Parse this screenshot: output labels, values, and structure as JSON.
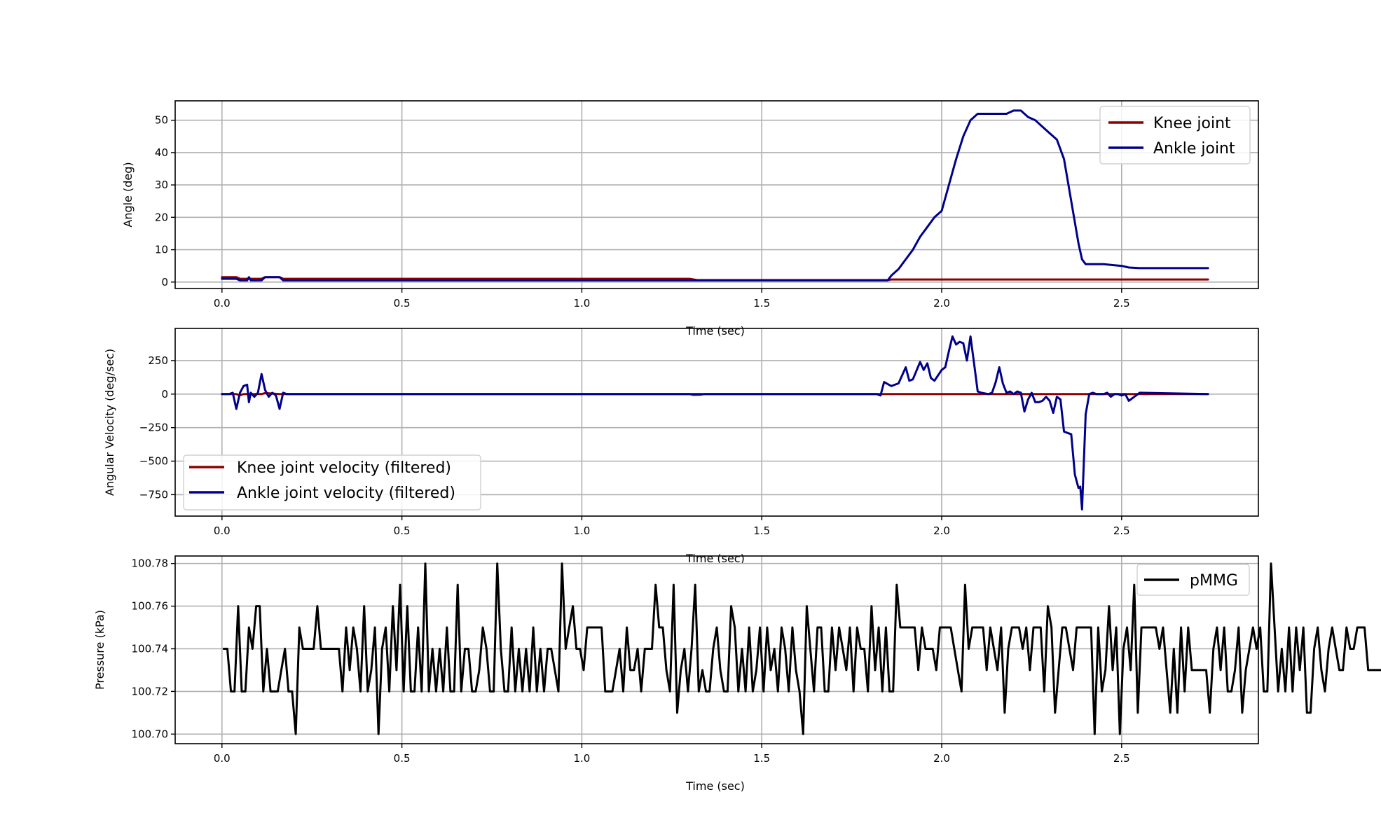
{
  "chart_data": [
    {
      "type": "line",
      "title": "",
      "xlabel": "Time (sec)",
      "ylabel": "Angle (deg)",
      "xlim": [
        -0.13,
        2.88
      ],
      "ylim": [
        -2,
        56
      ],
      "xticks": [
        0.0,
        0.5,
        1.0,
        1.5,
        2.0,
        2.5
      ],
      "xtick_labels": [
        "0.0",
        "0.5",
        "1.0",
        "1.5",
        "2.0",
        "2.5"
      ],
      "yticks": [
        0,
        10,
        20,
        30,
        40,
        50
      ],
      "ytick_labels": [
        "0",
        "10",
        "20",
        "30",
        "40",
        "50"
      ],
      "grid": true,
      "legend_position": "upper right",
      "series": [
        {
          "name": "Knee joint",
          "color": "#8b0000",
          "x": [
            0.0,
            0.04,
            0.05,
            0.11,
            0.12,
            0.16,
            0.17,
            1.3,
            1.32,
            1.85,
            1.86,
            2.74
          ],
          "y": [
            1.5,
            1.5,
            1.0,
            1.0,
            1.5,
            1.5,
            1.0,
            1.0,
            0.6,
            0.6,
            0.8,
            0.8
          ]
        },
        {
          "name": "Ankle joint",
          "color": "#00008b",
          "x": [
            0.0,
            0.04,
            0.05,
            0.07,
            0.075,
            0.08,
            0.09,
            0.11,
            0.12,
            0.16,
            0.17,
            1.85,
            1.86,
            1.88,
            1.9,
            1.92,
            1.94,
            1.96,
            1.98,
            2.0,
            2.02,
            2.04,
            2.06,
            2.08,
            2.1,
            2.12,
            2.15,
            2.18,
            2.2,
            2.22,
            2.24,
            2.26,
            2.28,
            2.3,
            2.32,
            2.34,
            2.36,
            2.38,
            2.39,
            2.4,
            2.45,
            2.5,
            2.52,
            2.55,
            2.74
          ],
          "y": [
            1.0,
            1.0,
            0.5,
            0.5,
            1.5,
            0.5,
            0.5,
            0.5,
            1.5,
            1.5,
            0.5,
            0.5,
            2.0,
            4.0,
            7.0,
            10.0,
            14.0,
            17.0,
            20.0,
            22.0,
            30.0,
            38.0,
            45.0,
            50.0,
            52.0,
            52.0,
            52.0,
            52.0,
            53.0,
            53.0,
            51.0,
            50.0,
            48.0,
            46.0,
            44.0,
            38.0,
            25.0,
            12.0,
            7.0,
            5.5,
            5.5,
            5.0,
            4.5,
            4.3,
            4.3
          ]
        }
      ]
    },
    {
      "type": "line",
      "title": "",
      "xlabel": "Time (sec)",
      "ylabel": "Angular Velocity (deg/sec)",
      "xlim": [
        -0.13,
        2.88
      ],
      "ylim": [
        -910,
        490
      ],
      "xticks": [
        0.0,
        0.5,
        1.0,
        1.5,
        2.0,
        2.5
      ],
      "xtick_labels": [
        "0.0",
        "0.5",
        "1.0",
        "1.5",
        "2.0",
        "2.5"
      ],
      "yticks": [
        250,
        0,
        -250,
        -500,
        -750
      ],
      "ytick_labels": [
        "250",
        "0",
        "−250",
        "−500",
        "−750"
      ],
      "grid": true,
      "legend_position": "lower left",
      "series": [
        {
          "name": "Knee joint velocity (filtered)",
          "color": "#8b0000",
          "x": [
            0.0,
            0.04,
            0.05,
            0.06,
            0.11,
            0.12,
            0.16,
            0.17,
            1.3,
            1.31,
            1.33,
            1.34,
            2.74
          ],
          "y": [
            0,
            0,
            -8,
            0,
            0,
            8,
            0,
            0,
            0,
            -6,
            -4,
            0,
            0
          ]
        },
        {
          "name": "Ankle joint velocity (filtered)",
          "color": "#00008b",
          "x": [
            0.0,
            0.02,
            0.03,
            0.04,
            0.05,
            0.06,
            0.07,
            0.075,
            0.08,
            0.09,
            0.1,
            0.11,
            0.12,
            0.13,
            0.14,
            0.15,
            0.16,
            0.17,
            0.18,
            1.82,
            1.83,
            1.84,
            1.86,
            1.87,
            1.88,
            1.9,
            1.91,
            1.92,
            1.94,
            1.95,
            1.96,
            1.97,
            1.98,
            2.0,
            2.01,
            2.02,
            2.03,
            2.04,
            2.05,
            2.06,
            2.07,
            2.08,
            2.09,
            2.1,
            2.11,
            2.12,
            2.13,
            2.14,
            2.15,
            2.16,
            2.17,
            2.18,
            2.19,
            2.2,
            2.21,
            2.22,
            2.23,
            2.24,
            2.25,
            2.26,
            2.27,
            2.28,
            2.29,
            2.3,
            2.31,
            2.32,
            2.33,
            2.34,
            2.35,
            2.36,
            2.37,
            2.38,
            2.385,
            2.39,
            2.4,
            2.41,
            2.42,
            2.43,
            2.44,
            2.45,
            2.46,
            2.47,
            2.48,
            2.49,
            2.5,
            2.51,
            2.52,
            2.55,
            2.74
          ],
          "y": [
            0,
            0,
            10,
            -110,
            10,
            60,
            70,
            -60,
            10,
            -20,
            10,
            150,
            30,
            -20,
            10,
            -10,
            -110,
            10,
            0,
            0,
            -10,
            90,
            60,
            70,
            80,
            200,
            100,
            110,
            240,
            180,
            230,
            120,
            100,
            180,
            200,
            320,
            430,
            370,
            390,
            380,
            250,
            430,
            230,
            20,
            10,
            5,
            0,
            10,
            90,
            200,
            80,
            10,
            20,
            0,
            20,
            10,
            -130,
            -40,
            10,
            -60,
            -60,
            -50,
            -20,
            -50,
            -140,
            -20,
            -40,
            -280,
            -290,
            -300,
            -600,
            -700,
            -690,
            -860,
            -150,
            0,
            10,
            0,
            0,
            0,
            10,
            -20,
            0,
            0,
            -10,
            0,
            -50,
            10,
            0
          ]
        }
      ]
    },
    {
      "type": "line",
      "title": "",
      "xlabel": "Time (sec)",
      "ylabel": "Pressure (kPa)",
      "xlim": [
        -0.13,
        2.88
      ],
      "ylim": [
        100.6955,
        100.7835
      ],
      "xticks": [
        0.0,
        0.5,
        1.0,
        1.5,
        2.0,
        2.5
      ],
      "xtick_labels": [
        "0.0",
        "0.5",
        "1.0",
        "1.5",
        "2.0",
        "2.5"
      ],
      "yticks": [
        100.7,
        100.72,
        100.74,
        100.76,
        100.78
      ],
      "ytick_labels": [
        "100.70",
        "100.72",
        "100.74",
        "100.76",
        "100.78"
      ],
      "grid": true,
      "legend_position": "upper right",
      "series": [
        {
          "name": "pMMG",
          "color": "#000000",
          "x_start": 0.005,
          "x_step": 0.01,
          "y": [
            100.74,
            100.74,
            100.72,
            100.72,
            100.76,
            100.72,
            100.72,
            100.75,
            100.74,
            100.76,
            100.76,
            100.72,
            100.74,
            100.72,
            100.72,
            100.72,
            100.73,
            100.74,
            100.72,
            100.72,
            100.7,
            100.75,
            100.74,
            100.74,
            100.74,
            100.74,
            100.76,
            100.74,
            100.74,
            100.74,
            100.74,
            100.74,
            100.74,
            100.72,
            100.75,
            100.73,
            100.75,
            100.74,
            100.72,
            100.76,
            100.72,
            100.73,
            100.75,
            100.7,
            100.74,
            100.75,
            100.72,
            100.76,
            100.73,
            100.77,
            100.72,
            100.76,
            100.72,
            100.72,
            100.75,
            100.72,
            100.78,
            100.72,
            100.74,
            100.72,
            100.74,
            100.72,
            100.75,
            100.72,
            100.72,
            100.77,
            100.72,
            100.74,
            100.74,
            100.72,
            100.72,
            100.73,
            100.75,
            100.74,
            100.72,
            100.72,
            100.78,
            100.74,
            100.72,
            100.72,
            100.75,
            100.72,
            100.74,
            100.72,
            100.74,
            100.72,
            100.75,
            100.72,
            100.74,
            100.72,
            100.74,
            100.74,
            100.73,
            100.72,
            100.78,
            100.74,
            100.75,
            100.76,
            100.74,
            100.74,
            100.73,
            100.75,
            100.75,
            100.75,
            100.75,
            100.75,
            100.72,
            100.72,
            100.72,
            100.73,
            100.74,
            100.72,
            100.75,
            100.73,
            100.73,
            100.74,
            100.72,
            100.74,
            100.74,
            100.74,
            100.77,
            100.75,
            100.75,
            100.73,
            100.72,
            100.77,
            100.71,
            100.73,
            100.74,
            100.72,
            100.74,
            100.77,
            100.72,
            100.73,
            100.72,
            100.72,
            100.74,
            100.75,
            100.73,
            100.72,
            100.72,
            100.76,
            100.75,
            100.72,
            100.74,
            100.72,
            100.75,
            100.72,
            100.73,
            100.75,
            100.72,
            100.75,
            100.73,
            100.74,
            100.72,
            100.75,
            100.74,
            100.72,
            100.75,
            100.73,
            100.72,
            100.7,
            100.76,
            100.74,
            100.72,
            100.75,
            100.75,
            100.72,
            100.72,
            100.75,
            100.73,
            100.75,
            100.74,
            100.73,
            100.75,
            100.72,
            100.75,
            100.74,
            100.74,
            100.72,
            100.76,
            100.73,
            100.75,
            100.72,
            100.75,
            100.72,
            100.72,
            100.77,
            100.75,
            100.75,
            100.75,
            100.75,
            100.75,
            100.73,
            100.75,
            100.74,
            100.74,
            100.74,
            100.73,
            100.75,
            100.75,
            100.75,
            100.75,
            100.74,
            100.73,
            100.72,
            100.77,
            100.74,
            100.75,
            100.75,
            100.75,
            100.75,
            100.73,
            100.75,
            100.74,
            100.73,
            100.75,
            100.71,
            100.74,
            100.75,
            100.75,
            100.75,
            100.74,
            100.75,
            100.73,
            100.75,
            100.75,
            100.75,
            100.72,
            100.76,
            100.75,
            100.71,
            100.73,
            100.75,
            100.75,
            100.74,
            100.73,
            100.75,
            100.75,
            100.75,
            100.75,
            100.75,
            100.7,
            100.75,
            100.72,
            100.73,
            100.76,
            100.73,
            100.75,
            100.7,
            100.74,
            100.75,
            100.73,
            100.77,
            100.71,
            100.75,
            100.75,
            100.75,
            100.75,
            100.75,
            100.74,
            100.75,
            100.73,
            100.71,
            100.74,
            100.71,
            100.75,
            100.72,
            100.75,
            100.73,
            100.73,
            100.73,
            100.73,
            100.73,
            100.71,
            100.74,
            100.75,
            100.73,
            100.75,
            100.72,
            100.72,
            100.73,
            100.75,
            100.71,
            100.73,
            100.74,
            100.75,
            100.74,
            100.75,
            100.72,
            100.72,
            100.78,
            100.75,
            100.72,
            100.74,
            100.72,
            100.75,
            100.72,
            100.75,
            100.73,
            100.75,
            100.71,
            100.71,
            100.74,
            100.75,
            100.73,
            100.72,
            100.74,
            100.75,
            100.74,
            100.73,
            100.73,
            100.75,
            100.74,
            100.74,
            100.75,
            100.75,
            100.75,
            100.73,
            100.73,
            100.73,
            100.73,
            100.73,
            100.74,
            100.74,
            100.73,
            100.71,
            100.75,
            100.71,
            100.73,
            100.74,
            100.75,
            100.75,
            100.73,
            100.74,
            100.75,
            100.75,
            100.75,
            100.71,
            100.75,
            100.73,
            100.75
          ]
        }
      ]
    }
  ]
}
